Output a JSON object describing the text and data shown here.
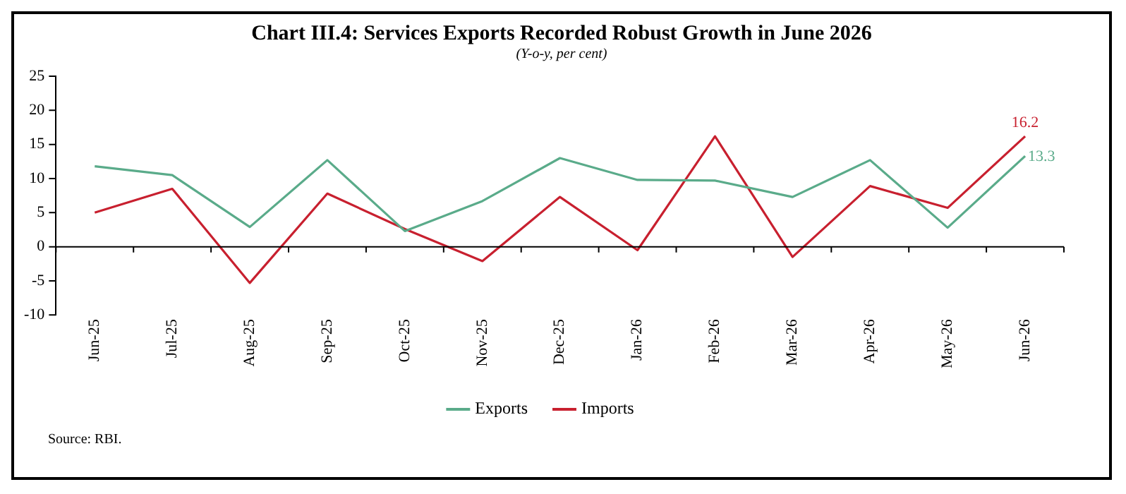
{
  "chart_data": {
    "type": "line",
    "title": "Chart III.4: Services Exports Recorded Robust Growth in June 2026",
    "subtitle": "(Y-o-y, per cent)",
    "categories": [
      "Jun-25",
      "Jul-25",
      "Aug-25",
      "Sep-25",
      "Oct-25",
      "Nov-25",
      "Dec-25",
      "Jan-26",
      "Feb-26",
      "Mar-26",
      "Apr-26",
      "May-26",
      "Jun-26"
    ],
    "series": [
      {
        "name": "Exports",
        "color": "#5aab8a",
        "values": [
          11.8,
          10.5,
          2.9,
          12.7,
          2.3,
          6.7,
          13.0,
          9.8,
          9.7,
          7.3,
          12.7,
          2.8,
          13.3
        ],
        "value_labels": [
          null,
          null,
          null,
          null,
          null,
          null,
          null,
          null,
          null,
          null,
          null,
          null,
          "13.3"
        ]
      },
      {
        "name": "Imports",
        "color": "#c8202f",
        "values": [
          5.0,
          8.5,
          -5.3,
          7.8,
          2.6,
          -2.1,
          7.3,
          -0.5,
          16.2,
          -1.5,
          8.9,
          5.7,
          16.2
        ],
        "value_labels": [
          null,
          null,
          null,
          null,
          null,
          null,
          null,
          null,
          null,
          null,
          null,
          null,
          "16.2"
        ]
      }
    ],
    "ylim": [
      -10,
      25
    ],
    "yticks": [
      -10,
      -5,
      0,
      5,
      10,
      15,
      20,
      25
    ],
    "legend": "bottom",
    "marker": "none",
    "line_style": "solid",
    "annotations": [
      "Source: RBI."
    ]
  }
}
